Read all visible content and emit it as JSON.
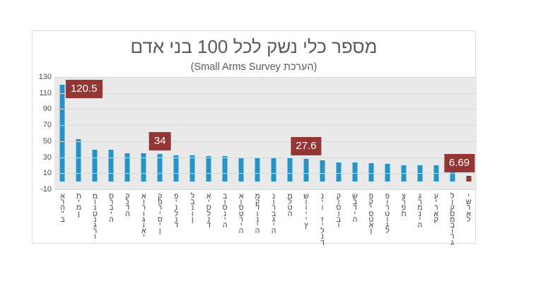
{
  "chart_data": {
    "type": "bar",
    "title": "מספר כלי נשק לכל 100 בני אדם",
    "subtitle": "(הערכת Small Arms Survey)",
    "categories": [
      "ארה\"ב",
      "תימן",
      "מונטנגרו",
      "סרביה",
      "קנדה",
      "אורוגואי",
      "קפריסין",
      "פינלנד",
      "לבנון",
      "איסלנד",
      "בוסניה",
      "אוסטריה",
      "מקדוניה",
      "נורבגיה",
      "מלטה",
      "שווייץ",
      "ניו זילנד",
      "קוסובו",
      "שבדיה",
      "פקיסטאן",
      "פורטוגל",
      "צרפת",
      "גרמניה",
      "עיראק",
      "לוקסמבורג",
      "ישראל"
    ],
    "values": [
      120.5,
      52.8,
      39.1,
      39.1,
      34.7,
      34.7,
      34,
      32.4,
      31.9,
      31.7,
      31.2,
      30,
      29.8,
      28.8,
      28.3,
      27.6,
      26.3,
      23.8,
      23.1,
      22.3,
      21.3,
      19.6,
      19.6,
      19.6,
      18.9,
      6.69
    ],
    "ylim": [
      -10,
      130
    ],
    "y_ticks": [
      "130",
      "110",
      "90",
      "70",
      "50",
      "30",
      "10",
      "-10"
    ],
    "grid": "horizontal",
    "legend": "none",
    "xlabel": "",
    "ylabel": "",
    "bar_color": "#2792c8",
    "highlight_color": "#943634",
    "highlight_index": 25,
    "data_labels": [
      {
        "index": 0,
        "text": "120.5",
        "placement": "right-of-bar"
      },
      {
        "index": 6,
        "text": "34",
        "placement": "above"
      },
      {
        "index": 15,
        "text": "27.6",
        "placement": "above"
      },
      {
        "index": 25,
        "text": "6.69",
        "placement": "above-left"
      }
    ],
    "colors": {
      "plot_bg": "#e9e9e9",
      "gridline": "#d8d8d8",
      "axis_text": "#4d4d4d",
      "title_text": "#5a5a5a",
      "badge_bg": "#943634",
      "badge_text": "#ffffff",
      "card_bg": "#ffffff",
      "card_border": "#dcdcdc",
      "page_bg": "#ffffff"
    }
  }
}
